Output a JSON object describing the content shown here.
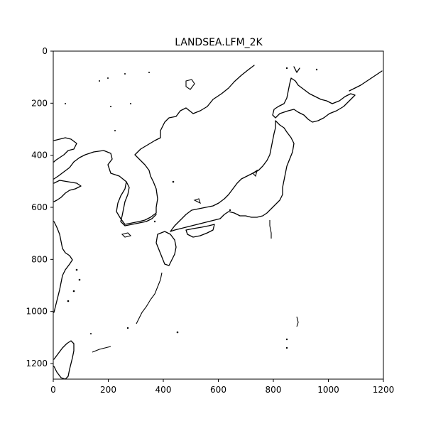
{
  "title": "LANDSEA.LFM_2K",
  "chart_data": {
    "type": "contour-map",
    "title": "LANDSEA.LFM_2K",
    "xlim": [
      0,
      1200
    ],
    "ylim": [
      1260,
      0
    ],
    "x_ticks": [
      0,
      200,
      400,
      600,
      800,
      1000,
      1200
    ],
    "y_ticks": [
      0,
      200,
      400,
      600,
      800,
      1000,
      1200
    ],
    "grid": false,
    "line_color": "#000000",
    "background": "#ffffff"
  }
}
